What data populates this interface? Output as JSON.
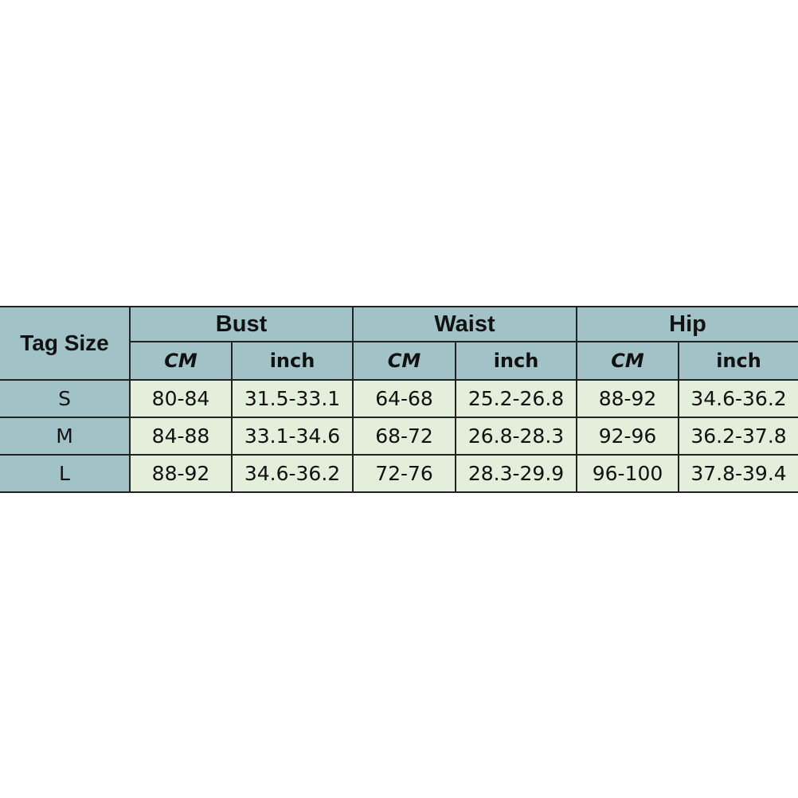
{
  "table": {
    "corner_label": "Tag Size",
    "groups": [
      "Bust",
      "Waist",
      "Hip"
    ],
    "units": [
      "CM",
      "inch",
      "CM",
      "inch",
      "CM",
      "inch"
    ],
    "rows": [
      {
        "size": "S",
        "values": [
          "80-84",
          "31.5-33.1",
          "64-68",
          "25.2-26.8",
          "88-92",
          "34.6-36.2"
        ]
      },
      {
        "size": "M",
        "values": [
          "84-88",
          "33.1-34.6",
          "68-72",
          "26.8-28.3",
          "92-96",
          "36.2-37.8"
        ]
      },
      {
        "size": "L",
        "values": [
          "88-92",
          "34.6-36.2",
          "72-76",
          "28.3-29.9",
          "96-100",
          "37.8-39.4"
        ]
      }
    ],
    "colors": {
      "header": "#a1c3c8",
      "cell": "#e3eedb",
      "border": "#222222"
    }
  }
}
